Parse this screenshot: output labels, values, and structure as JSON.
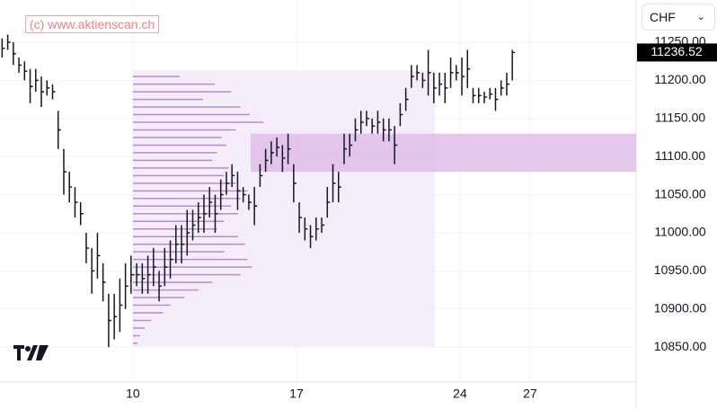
{
  "chart_data": {
    "type": "ohlc",
    "watermark": "(c) www.aktienscan.ch",
    "currency": "CHF",
    "last_price": {
      "value": 11236.52,
      "label": "11236.52"
    },
    "x": [
      4.4,
      4.64,
      4.88,
      5.12,
      5.36,
      5.6,
      5.84,
      6.08,
      6.32,
      6.56,
      6.8,
      7.04,
      7.28,
      7.52,
      7.76,
      8.0,
      8.24,
      8.48,
      8.72,
      8.96,
      9.2,
      9.44,
      9.68,
      9.92,
      10.16,
      10.4,
      10.64,
      10.88,
      11.12,
      11.36,
      11.6,
      11.84,
      12.08,
      12.32,
      12.56,
      12.8,
      13.04,
      13.28,
      13.52,
      13.76,
      14.0,
      14.24,
      14.48,
      14.72,
      14.96,
      15.2,
      15.44,
      15.68,
      15.92,
      16.16,
      16.4,
      16.64,
      16.88,
      17.12,
      17.36,
      17.6,
      17.84,
      18.08,
      18.32,
      18.56,
      18.8,
      19.04,
      19.28,
      19.52,
      19.76,
      20.0,
      20.24,
      20.48,
      20.72,
      20.96,
      21.2,
      21.44,
      21.68,
      21.92,
      22.16,
      22.4,
      22.64,
      22.88,
      23.12,
      23.36,
      23.6,
      23.84,
      24.08,
      24.32,
      24.56,
      24.8,
      25.04,
      25.28,
      25.52,
      25.76,
      26.0,
      26.24
    ],
    "high": [
      11255,
      11260,
      11250,
      11230,
      11225,
      11215,
      11215,
      11205,
      11200,
      11195,
      11160,
      11110,
      11080,
      11060,
      11040,
      11000,
      10980,
      11000,
      10960,
      10920,
      10920,
      10940,
      10960,
      10970,
      10960,
      10960,
      10970,
      10980,
      10950,
      10980,
      10990,
      11010,
      11010,
      11030,
      11030,
      11040,
      11050,
      11060,
      11050,
      11070,
      11080,
      11090,
      11080,
      11060,
      11050,
      11060,
      11090,
      11110,
      11120,
      11125,
      11115,
      11130,
      11090,
      11040,
      11020,
      11010,
      11020,
      11020,
      11060,
      11090,
      11080,
      11130,
      11130,
      11150,
      11160,
      11160,
      11150,
      11160,
      11150,
      11150,
      11140,
      11170,
      11190,
      11220,
      11220,
      11210,
      11240,
      11210,
      11210,
      11210,
      11230,
      11220,
      11230,
      11240,
      11190,
      11190,
      11185,
      11190,
      11190,
      11200,
      11210,
      11240
    ],
    "low": [
      11230,
      11240,
      11220,
      11210,
      11200,
      11170,
      11185,
      11165,
      11180,
      11175,
      11110,
      11050,
      11040,
      11020,
      11010,
      10960,
      10920,
      10940,
      10910,
      10850,
      10860,
      10870,
      10900,
      10920,
      10930,
      10920,
      10920,
      10930,
      10910,
      10930,
      10940,
      10960,
      10960,
      10970,
      10990,
      11000,
      11000,
      11020,
      11000,
      11030,
      11050,
      11060,
      11030,
      11040,
      11030,
      11010,
      11060,
      11080,
      11090,
      11100,
      11080,
      11090,
      11040,
      11000,
      10990,
      10980,
      10990,
      11000,
      11020,
      11040,
      11040,
      11090,
      11100,
      11120,
      11130,
      11140,
      11130,
      11130,
      11120,
      11120,
      11090,
      11140,
      11160,
      11190,
      11200,
      11190,
      11180,
      11170,
      11180,
      11170,
      11190,
      11200,
      11180,
      11190,
      11170,
      11170,
      11170,
      11175,
      11160,
      11180,
      11180,
      11200
    ],
    "close": [
      11242,
      11250,
      11235,
      11220,
      11212,
      11192,
      11200,
      11185,
      11190,
      11185,
      11135,
      11080,
      11060,
      11040,
      11025,
      10980,
      10950,
      10970,
      10935,
      10885,
      10890,
      10905,
      10930,
      10945,
      10945,
      10940,
      10945,
      10955,
      10930,
      10955,
      10965,
      10985,
      10985,
      11000,
      11010,
      11020,
      11025,
      11040,
      11025,
      11050,
      11065,
      11075,
      11055,
      11050,
      11040,
      11035,
      11075,
      11095,
      11105,
      11112,
      11098,
      11110,
      11065,
      11020,
      11005,
      10995,
      11005,
      11010,
      11040,
      11065,
      11060,
      11110,
      11115,
      11135,
      11145,
      11150,
      11140,
      11145,
      11135,
      11135,
      11115,
      11155,
      11175,
      11205,
      11210,
      11200,
      11210,
      11190,
      11195,
      11190,
      11210,
      11210,
      11205,
      11215,
      11180,
      11180,
      11178,
      11182,
      11175,
      11190,
      11195,
      11236.52
    ],
    "color": "#131722",
    "volume_profile": {
      "x_range": [
        10,
        22.92
      ],
      "y_range": [
        10850,
        11213
      ],
      "color": "#b98ad6",
      "background": "#f3e9f8",
      "levels": [
        11205,
        11195,
        11185,
        11175,
        11165,
        11155,
        11145,
        11135,
        11125,
        11115,
        11105,
        11095,
        11085,
        11075,
        11065,
        11055,
        11045,
        11035,
        11025,
        11015,
        11005,
        10995,
        10985,
        10975,
        10965,
        10955,
        10945,
        10935,
        10925,
        10915,
        10905,
        10895,
        10885,
        10875,
        10865,
        10855
      ],
      "volumes": [
        2.0,
        3.5,
        4.2,
        3.0,
        4.6,
        5.0,
        5.6,
        4.4,
        3.8,
        4.0,
        3.6,
        3.4,
        4.1,
        3.9,
        4.4,
        4.9,
        4.6,
        4.2,
        4.5,
        3.9,
        3.6,
        4.5,
        4.8,
        3.9,
        4.9,
        5.1,
        4.6,
        3.4,
        2.8,
        2.2,
        1.6,
        1.3,
        0.8,
        0.5,
        0.3,
        0.2
      ]
    },
    "value_area": {
      "x_start": 15.04,
      "y_range": [
        11080,
        11130
      ],
      "color": "#dcb6e6"
    },
    "xlim": [
      4.31,
      31.54
    ],
    "xticks": [
      10,
      17,
      24,
      27
    ],
    "ylim": [
      10804.2,
      11305.4
    ],
    "yticks": [
      {
        "value": 10850,
        "label": "10850.00"
      },
      {
        "value": 10900,
        "label": "10900.00"
      },
      {
        "value": 10950,
        "label": "10950.00"
      },
      {
        "value": 11000,
        "label": "11000.00"
      },
      {
        "value": 11050,
        "label": "11050.00"
      },
      {
        "value": 11100,
        "label": "11100.00"
      },
      {
        "value": 11150,
        "label": "11150.00"
      },
      {
        "value": 11200,
        "label": "11200.00"
      },
      {
        "value": 11250,
        "label": "11250.00"
      }
    ],
    "grid": true
  }
}
